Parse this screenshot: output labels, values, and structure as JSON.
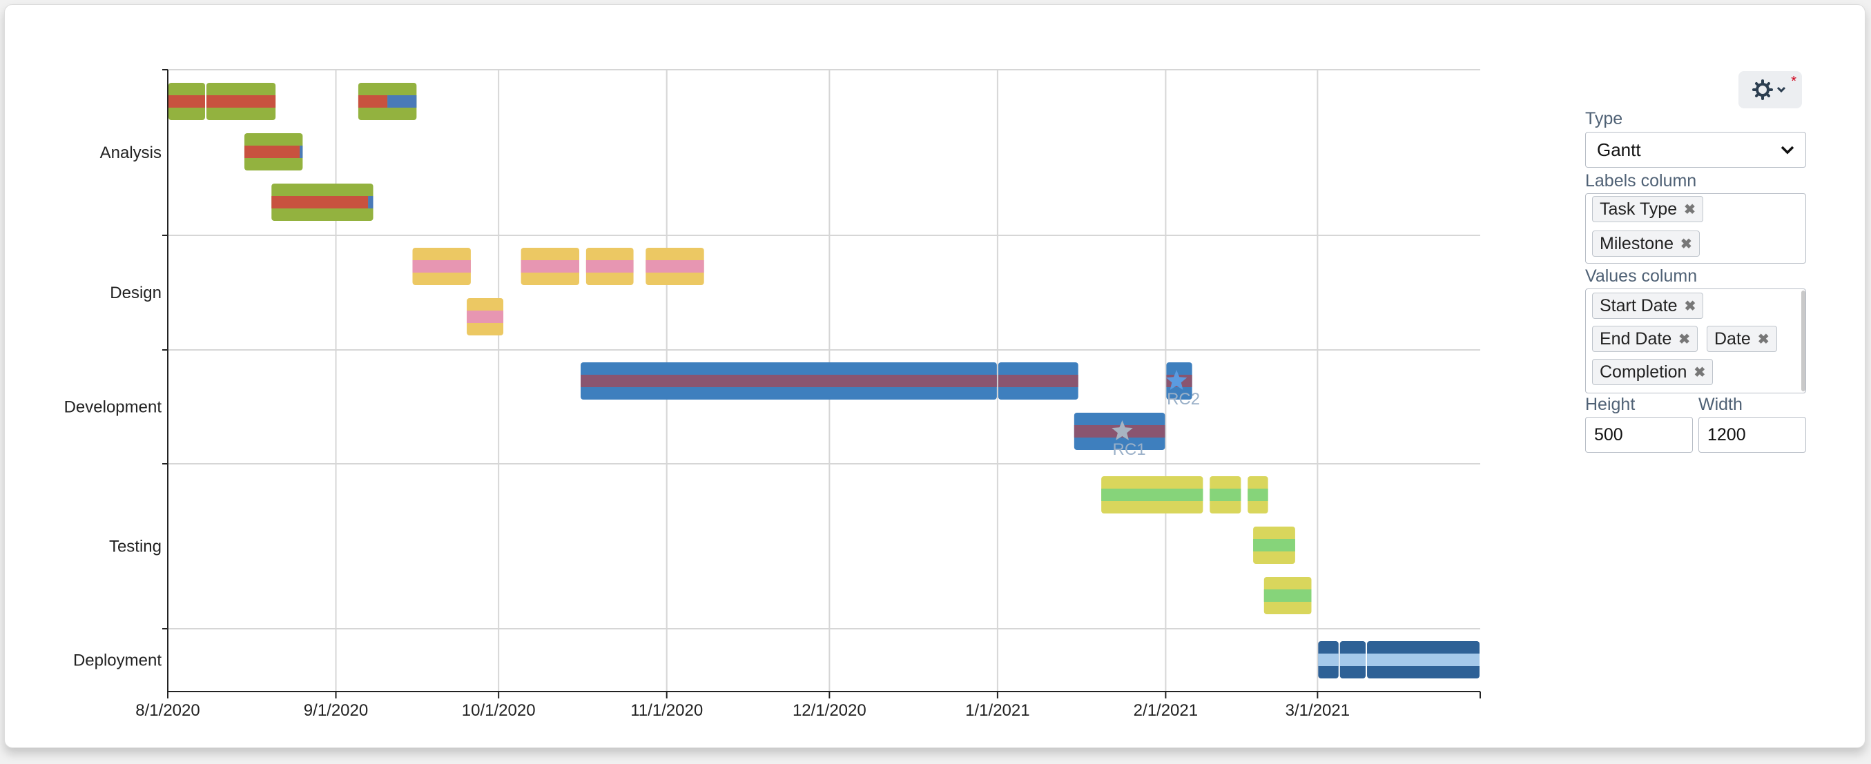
{
  "chart_data": {
    "type": "gantt",
    "y_categories": [
      "Analysis",
      "Design",
      "Development",
      "Testing",
      "Deployment"
    ],
    "x_ticks": [
      "8/1/2020",
      "9/1/2020",
      "10/1/2020",
      "11/1/2020",
      "12/1/2020",
      "1/1/2021",
      "2/1/2021",
      "3/1/2021"
    ],
    "x_range": [
      "2020-08-01",
      "2021-03-31"
    ],
    "grid": true,
    "colors": {
      "Analysis": {
        "bar": "#93b23f",
        "progress": "#c8523f",
        "remaining": "#4a7ab8"
      },
      "Design": {
        "bar": "#ecc863",
        "progress": "#e796b2",
        "remaining": "#e796b2"
      },
      "Development": {
        "bar": "#3e7fbe",
        "progress": "#8a5570",
        "remaining": "#8a5570"
      },
      "Testing": {
        "bar": "#d9d65c",
        "progress": "#86d47a",
        "remaining": "#86d47a"
      },
      "Deployment": {
        "bar": "#2e6196",
        "progress": "#a5c9ea",
        "remaining": "#a5c9ea"
      }
    },
    "tasks": [
      {
        "category": "Analysis",
        "row": 0,
        "start": "2020-08-01",
        "end": "2020-08-08",
        "completion": 1
      },
      {
        "category": "Analysis",
        "row": 0,
        "start": "2020-08-08",
        "end": "2020-08-21",
        "completion": 1
      },
      {
        "category": "Analysis",
        "row": 0,
        "start": "2020-09-05",
        "end": "2020-09-16",
        "completion": 0.5
      },
      {
        "category": "Analysis",
        "row": 1,
        "start": "2020-08-15",
        "end": "2020-08-26",
        "completion": 0.95
      },
      {
        "category": "Analysis",
        "row": 2,
        "start": "2020-08-20",
        "end": "2020-09-08",
        "completion": 0.95
      },
      {
        "category": "Design",
        "row": 0,
        "start": "2020-09-15",
        "end": "2020-09-26",
        "completion": 1
      },
      {
        "category": "Design",
        "row": 0,
        "start": "2020-10-05",
        "end": "2020-10-16",
        "completion": 1
      },
      {
        "category": "Design",
        "row": 0,
        "start": "2020-10-17",
        "end": "2020-10-26",
        "completion": 1
      },
      {
        "category": "Design",
        "row": 0,
        "start": "2020-10-28",
        "end": "2020-11-08",
        "completion": 1
      },
      {
        "category": "Design",
        "row": 1,
        "start": "2020-09-25",
        "end": "2020-10-02",
        "completion": 1
      },
      {
        "category": "Development",
        "row": 0,
        "start": "2020-10-16",
        "end": "2021-01-01",
        "completion": 1
      },
      {
        "category": "Development",
        "row": 0,
        "start": "2021-01-01",
        "end": "2021-01-16",
        "completion": 1
      },
      {
        "category": "Development",
        "row": 0,
        "start": "2021-02-01",
        "end": "2021-02-06",
        "completion": 1
      },
      {
        "category": "Development",
        "row": 1,
        "start": "2021-01-15",
        "end": "2021-02-01",
        "completion": 1
      },
      {
        "category": "Testing",
        "row": 0,
        "start": "2021-01-20",
        "end": "2021-02-08",
        "completion": 1
      },
      {
        "category": "Testing",
        "row": 0,
        "start": "2021-02-09",
        "end": "2021-02-15",
        "completion": 1
      },
      {
        "category": "Testing",
        "row": 0,
        "start": "2021-02-16",
        "end": "2021-02-20",
        "completion": 1
      },
      {
        "category": "Testing",
        "row": 1,
        "start": "2021-02-17",
        "end": "2021-02-25",
        "completion": 1
      },
      {
        "category": "Testing",
        "row": 2,
        "start": "2021-02-19",
        "end": "2021-02-28",
        "completion": 1
      },
      {
        "category": "Deployment",
        "row": 0,
        "start": "2021-03-01",
        "end": "2021-03-05",
        "completion": 1
      },
      {
        "category": "Deployment",
        "row": 0,
        "start": "2021-03-05",
        "end": "2021-03-10",
        "completion": 1
      },
      {
        "category": "Deployment",
        "row": 0,
        "start": "2021-03-10",
        "end": "2021-03-31",
        "completion": 1
      }
    ],
    "milestones": [
      {
        "category": "Development",
        "row": 0,
        "label": "RC2",
        "date": "2021-02-03",
        "color": "#5b9be0"
      },
      {
        "category": "Development",
        "row": 1,
        "label": "RC1",
        "date": "2021-01-24",
        "color": "#a8b4c2"
      }
    ]
  },
  "settings": {
    "type_label": "Type",
    "type_value": "Gantt",
    "labels_column_label": "Labels column",
    "labels_tags": [
      "Task Type",
      "Milestone"
    ],
    "values_column_label": "Values column",
    "values_tags": [
      "Start Date",
      "End Date",
      "Date",
      "Completion"
    ],
    "height_label": "Height",
    "height_value": "500",
    "width_label": "Width",
    "width_value": "1200",
    "gear_icon": "gear-icon",
    "required_marker": "*"
  }
}
